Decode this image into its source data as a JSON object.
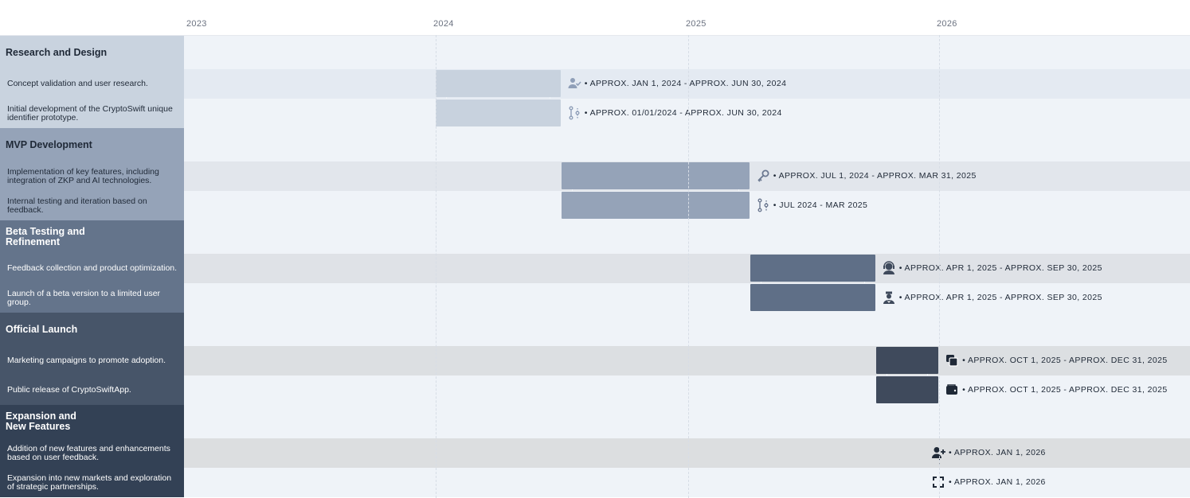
{
  "chart_data": {
    "type": "gantt",
    "axis": {
      "ticks": [
        "2023",
        "2024",
        "2025",
        "2026"
      ],
      "range": [
        "2023-01-01",
        "2027-01-01"
      ]
    },
    "phases": [
      {
        "name": "Research and Design",
        "color": "#c9d3df",
        "tasks": [
          {
            "name": "Concept validation and user research.",
            "start": "2024-01-01",
            "end": "2024-06-30",
            "label": "APPROX. JAN 1, 2024 - APPROX. JUN 30, 2024",
            "icon": "user-check-icon"
          },
          {
            "name": "Initial development of the CryptoSwift unique identifier prototype.",
            "start": "2024-01-01",
            "end": "2024-06-30",
            "label": "APPROX. 01/01/2024 - APPROX. JUN 30, 2024",
            "icon": "branch-icon"
          }
        ]
      },
      {
        "name": "MVP Development",
        "color": "#95a3b8",
        "tasks": [
          {
            "name": "Implementation of key features, including integration of ZKP and AI technologies.",
            "start": "2024-07-01",
            "end": "2025-03-31",
            "label": "APPROX. JUL 1, 2024 - APPROX. MAR 31, 2025",
            "icon": "key-icon"
          },
          {
            "name": "Internal testing and iteration based on feedback.",
            "start": "2024-07-01",
            "end": "2025-03-31",
            "label": "JUL 2024 - MAR 2025",
            "icon": "branch-icon"
          }
        ]
      },
      {
        "name": "Beta Testing and Refinement",
        "color": "#64748b",
        "tasks": [
          {
            "name": "Feedback collection and product optimization.",
            "start": "2025-04-01",
            "end": "2025-09-30",
            "label": "APPROX. APR 1, 2025 - APPROX. SEP 30, 2025",
            "icon": "support-agent-icon"
          },
          {
            "name": "Launch of a beta version to a limited user group.",
            "start": "2025-04-01",
            "end": "2025-09-30",
            "label": "APPROX. APR 1, 2025 - APPROX. SEP 30, 2025",
            "icon": "agent-icon"
          }
        ]
      },
      {
        "name": "Official Launch",
        "color": "#475569",
        "tasks": [
          {
            "name": "Marketing campaigns to promote adoption.",
            "start": "2025-10-01",
            "end": "2025-12-31",
            "label": "APPROX. OCT 1, 2025 - APPROX. DEC 31, 2025",
            "icon": "chat-icon"
          },
          {
            "name": "Public release of CryptoSwiftApp.",
            "start": "2025-10-01",
            "end": "2025-12-31",
            "label": "APPROX. OCT 1, 2025 - APPROX. DEC 31, 2025",
            "icon": "wallet-icon"
          }
        ]
      },
      {
        "name": "Expansion and New Features",
        "color": "#334155",
        "tasks": [
          {
            "name": "Addition of new features and enhancements based on user feedback.",
            "start": "2026-01-01",
            "end": "2026-01-01",
            "label": "APPROX. JAN 1, 2026",
            "icon": "user-plus-icon",
            "milestone": true
          },
          {
            "name": "Expansion into new markets and exploration of strategic partnerships.",
            "start": "2026-01-01",
            "end": "2026-01-01",
            "label": "APPROX. JAN 1, 2026",
            "icon": "expand-icon",
            "milestone": true
          }
        ]
      }
    ]
  }
}
